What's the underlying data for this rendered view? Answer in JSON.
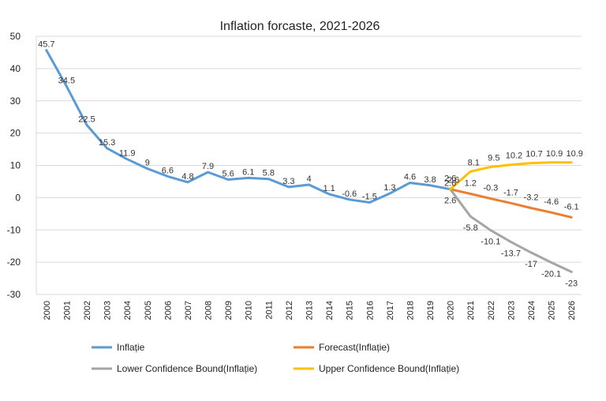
{
  "chart_data": {
    "type": "line",
    "title": "Inflation forcaste, 2021-2026",
    "xlabel": "",
    "ylabel": "",
    "ylim": [
      -30,
      50
    ],
    "yticks": [
      50,
      40,
      30,
      20,
      10,
      0,
      -10,
      -20,
      -30
    ],
    "grid": true,
    "legend_position": "bottom",
    "categories": [
      "2000",
      "2001",
      "2002",
      "2003",
      "2004",
      "2005",
      "2006",
      "2007",
      "2008",
      "2009",
      "2010",
      "2011",
      "2012",
      "2013",
      "2014",
      "2015",
      "2016",
      "2017",
      "2018",
      "2019",
      "2020",
      "2021",
      "2022",
      "2023",
      "2024",
      "2025",
      "2026"
    ],
    "series": [
      {
        "name": "Inflație",
        "color": "#5B9BD5",
        "values": [
          45.7,
          34.5,
          22.5,
          15.3,
          11.9,
          9,
          6.6,
          4.8,
          7.9,
          5.6,
          6.1,
          5.8,
          3.3,
          4,
          1.1,
          -0.6,
          -1.5,
          1.3,
          4.6,
          3.8,
          2.6,
          null,
          null,
          null,
          null,
          null,
          null
        ],
        "labels": [
          "45.7",
          "34.5",
          "22.5",
          "15.3",
          "11.9",
          "9",
          "6.6",
          "4.8",
          "7.9",
          "5.6",
          "6.1",
          "5.8",
          "3.3",
          "4",
          "1.1",
          "-0.6",
          "-1.5",
          "1.3",
          "4.6",
          "3.8",
          "2.6",
          "",
          "",
          "",
          "",
          "",
          ""
        ]
      },
      {
        "name": "Forecast(Inflație)",
        "color": "#ED7D31",
        "values": [
          null,
          null,
          null,
          null,
          null,
          null,
          null,
          null,
          null,
          null,
          null,
          null,
          null,
          null,
          null,
          null,
          null,
          null,
          null,
          null,
          2.6,
          1.2,
          -0.3,
          -1.7,
          -3.2,
          -4.6,
          -6.1
        ],
        "labels": [
          "",
          "",
          "",
          "",
          "",
          "",
          "",
          "",
          "",
          "",
          "",
          "",
          "",
          "",
          "",
          "",
          "",
          "",
          "",
          "",
          "2.6",
          "1.2",
          "-0.3",
          "-1.7",
          "-3.2",
          "-4.6",
          "-6.1"
        ]
      },
      {
        "name": "Lower Confidence Bound(Inflație)",
        "color": "#A5A5A5",
        "values": [
          null,
          null,
          null,
          null,
          null,
          null,
          null,
          null,
          null,
          null,
          null,
          null,
          null,
          null,
          null,
          null,
          null,
          null,
          null,
          null,
          2.6,
          -5.8,
          -10.1,
          -13.7,
          -17,
          -20.1,
          -23
        ],
        "labels": [
          "",
          "",
          "",
          "",
          "",
          "",
          "",
          "",
          "",
          "",
          "",
          "",
          "",
          "",
          "",
          "",
          "",
          "",
          "",
          "",
          "2.6",
          "-5.8",
          "-10.1",
          "-13.7",
          "-17",
          "-20.1",
          "-23"
        ]
      },
      {
        "name": "Upper Confidence Bound(Inflație)",
        "color": "#FFC000",
        "values": [
          null,
          null,
          null,
          null,
          null,
          null,
          null,
          null,
          null,
          null,
          null,
          null,
          null,
          null,
          null,
          null,
          null,
          null,
          null,
          null,
          2.6,
          8.1,
          9.5,
          10.2,
          10.7,
          10.9,
          10.9
        ],
        "labels": [
          "",
          "",
          "",
          "",
          "",
          "",
          "",
          "",
          "",
          "",
          "",
          "",
          "",
          "",
          "",
          "",
          "",
          "",
          "",
          "",
          "2.6",
          "8.1",
          "9.5",
          "10.2",
          "10.7",
          "10.9",
          "10.9"
        ]
      }
    ]
  }
}
